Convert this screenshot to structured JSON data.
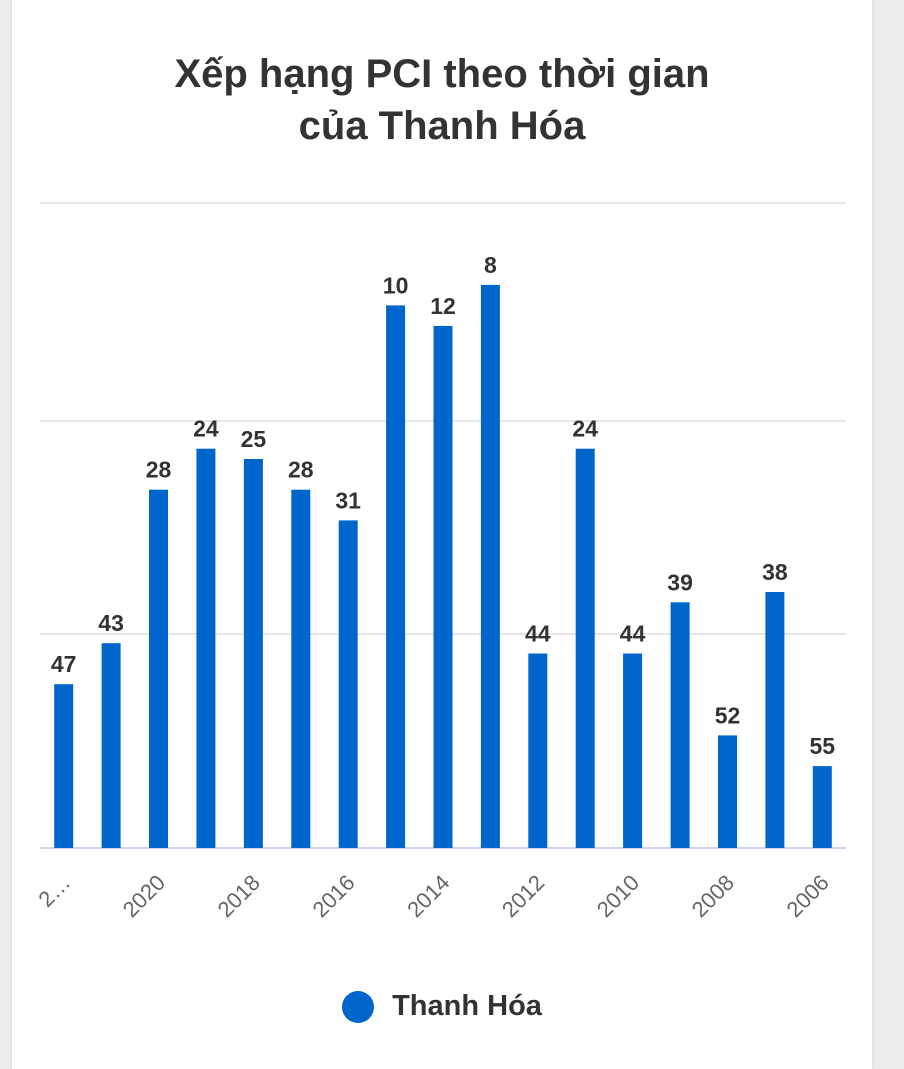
{
  "chart_data": {
    "type": "bar",
    "title_lines": [
      "Xếp hạng PCI theo thời gian",
      "của Thanh Hóa"
    ],
    "categories": [
      "2…",
      "",
      "2020",
      "",
      "2018",
      "",
      "2016",
      "",
      "2014",
      "",
      "2012",
      "",
      "2010",
      "",
      "2008",
      "",
      "2006"
    ],
    "series": [
      {
        "name": "Thanh Hóa",
        "values": [
          47,
          43,
          28,
          24,
          25,
          28,
          31,
          10,
          12,
          8,
          44,
          24,
          44,
          39,
          52,
          38,
          55
        ]
      }
    ],
    "ylim": [
      0,
      63
    ],
    "y_reversed": true,
    "grid": true,
    "legend_position": "bottom",
    "bar_color": "#0066cc"
  }
}
